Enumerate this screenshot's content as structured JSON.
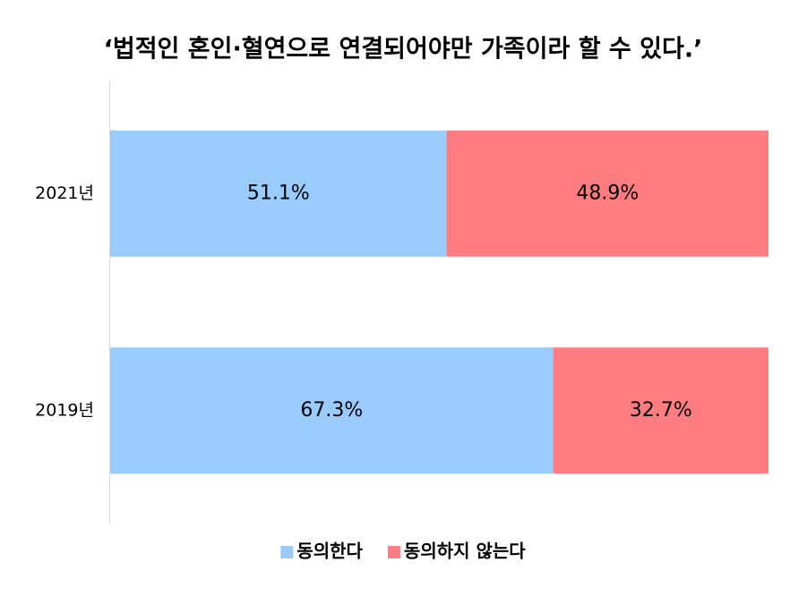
{
  "chart_data": {
    "type": "stacked-bar-horizontal",
    "title": "‘법적인 혼인·혈연으로 연결되어야만 가족이라 할 수 있다.’",
    "categories": [
      "2021년",
      "2019년"
    ],
    "series": [
      {
        "name": "동의한다",
        "color": "#99cbfd",
        "values": [
          51.1,
          67.3
        ],
        "value_labels": [
          "51.1%",
          "67.3%"
        ]
      },
      {
        "name": "동의하지 않는다",
        "color": "#ff7c80",
        "values": [
          48.9,
          32.7
        ],
        "value_labels": [
          "48.9%",
          "32.7%"
        ]
      }
    ],
    "xlim": [
      0,
      100
    ],
    "legend": "bottom"
  }
}
